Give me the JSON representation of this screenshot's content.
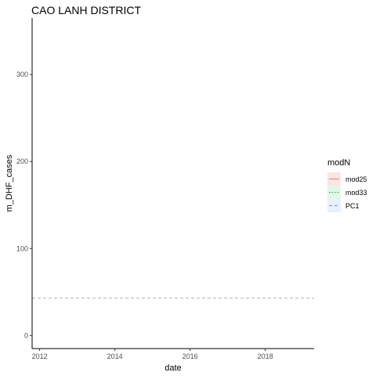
{
  "chart_data": {
    "type": "line",
    "title": "CAO LANH DISTRICT",
    "xlabel": "date",
    "ylabel": "m_DHF_cases",
    "xlim": [
      2011.8,
      2019.3
    ],
    "ylim": [
      -15,
      365
    ],
    "x_ticks": [
      2012,
      2014,
      2016,
      2018
    ],
    "y_ticks": [
      0,
      100,
      200,
      300
    ],
    "grid": false,
    "legend": {
      "title": "modN",
      "placement": "right",
      "entries": [
        {
          "name": "mod25",
          "color": "#f8766d",
          "linestyle": "solid",
          "fill": "#fbe6e4"
        },
        {
          "name": "mod33",
          "color": "#00ba38",
          "linestyle": "dotted",
          "fill": "#e2f6e8"
        },
        {
          "name": "PC1",
          "color": "#619cff",
          "linestyle": "dashed",
          "fill": "#e9f0ff"
        }
      ]
    },
    "reference_lines": [
      {
        "y": 43,
        "x": [
          2011.8,
          2019.3
        ],
        "color": "#b3b3b3",
        "linestyle": "dashed"
      }
    ],
    "series": [
      {
        "name": "mod25",
        "x": [],
        "values": []
      },
      {
        "name": "mod33",
        "x": [],
        "values": []
      },
      {
        "name": "PC1",
        "x": [],
        "values": []
      }
    ]
  }
}
